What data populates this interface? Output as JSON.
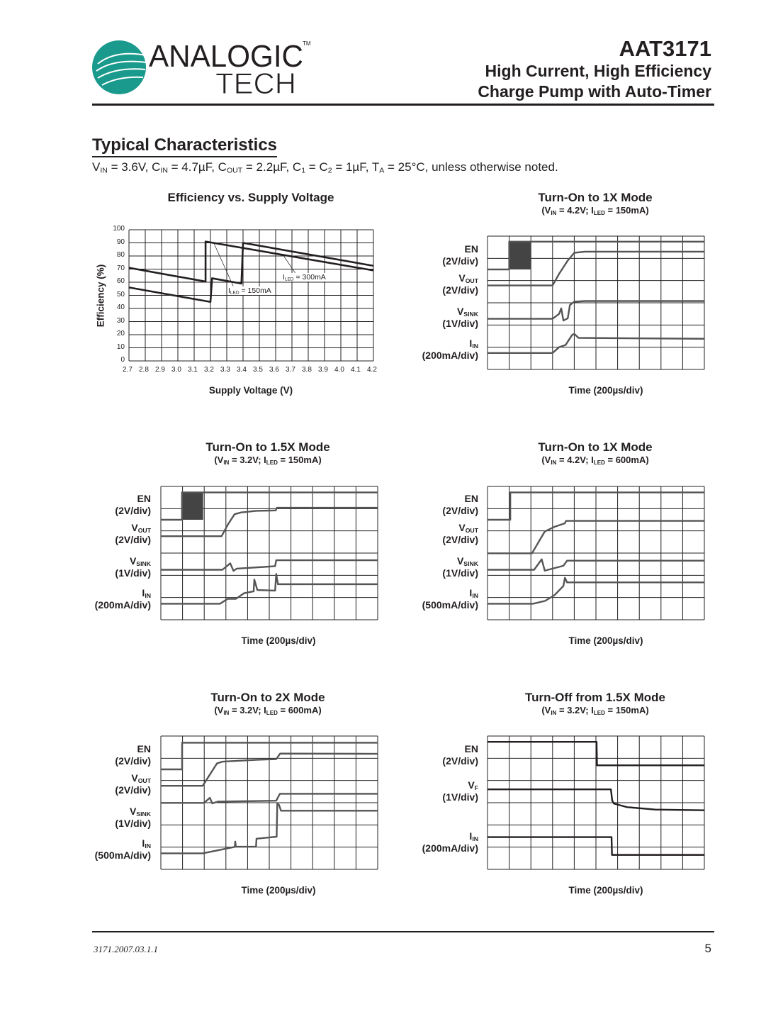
{
  "header": {
    "logo_text": "ANALOGIC TECH",
    "logo_line1": "ANALOGIC",
    "logo_line2": "TECH",
    "logo_tm": "TM",
    "logo_color": "#1a9a8c",
    "part_number": "AAT3171",
    "subtitle_line1": "High Current, High Efficiency",
    "subtitle_line2": "Charge Pump with Auto-Timer"
  },
  "section": {
    "title": "Typical Characteristics",
    "conditions": [
      [
        "V",
        0
      ],
      [
        "IN",
        1
      ],
      [
        " = 3.6V, C",
        0
      ],
      [
        "IN",
        1
      ],
      [
        " = 4.7µF, C",
        0
      ],
      [
        "OUT",
        1
      ],
      [
        " = 2.2µF, C",
        0
      ],
      [
        "1",
        1
      ],
      [
        " = C",
        0
      ],
      [
        "2",
        1
      ],
      [
        " = 1µF, T",
        0
      ],
      [
        "A",
        1
      ],
      [
        " = 25°C, unless otherwise noted.",
        0
      ]
    ]
  },
  "footer": {
    "doc_id": "3171.2007.03.1.1",
    "page_number": "5"
  },
  "chart_data": [
    {
      "type": "line",
      "title": "Efficiency vs. Supply Voltage",
      "xlabel": "Supply Voltage (V)",
      "ylabel": "Efficiency (%)",
      "xlim": [
        2.7,
        4.2
      ],
      "ylim": [
        0,
        100
      ],
      "xticks": [
        "2.7",
        "2.8",
        "2.9",
        "3.0",
        "3.1",
        "3.2",
        "3.3",
        "3.4",
        "3.5",
        "3.6",
        "3.7",
        "3.8",
        "3.9",
        "4.0",
        "4.1",
        "4.2"
      ],
      "yticks": [
        "0",
        "10",
        "20",
        "30",
        "40",
        "50",
        "60",
        "70",
        "80",
        "90",
        "100"
      ],
      "grid": true,
      "annotations": [
        {
          "text": [
            [
              "I",
              0
            ],
            [
              "LED",
              1
            ],
            [
              " = 300mA",
              0
            ]
          ]
        },
        {
          "text": [
            [
              "I",
              0
            ],
            [
              "LED",
              1
            ],
            [
              " = 150mA",
              0
            ]
          ]
        }
      ],
      "series": [
        {
          "points": [
            [
              2.7,
              71
            ],
            [
              3.17,
              60.5
            ],
            [
              3.17,
              91
            ],
            [
              4.2,
              69
            ]
          ]
        },
        {
          "points": [
            [
              2.7,
              56
            ],
            [
              3.2,
              45
            ],
            [
              3.21,
              63
            ],
            [
              3.39,
              59
            ],
            [
              3.4,
              90
            ],
            [
              4.2,
              72.5
            ]
          ]
        }
      ]
    },
    {
      "type": "line",
      "title": "Turn-On to 1X Mode",
      "subtitle": [
        [
          "(V",
          0
        ],
        [
          "IN",
          1
        ],
        [
          " = 4.2V; I",
          0
        ],
        [
          "LED",
          1
        ],
        [
          " = 150mA)",
          0
        ]
      ],
      "xlabel": "Time (200µs/div)",
      "xlim": [
        0,
        2000
      ],
      "ylim": [
        0,
        6
      ],
      "grid": true,
      "channels": [
        {
          "label": [
            [
              "EN",
              0
            ]
          ],
          "scale": "(2V/div)",
          "burst": [
            200,
            400,
            4.5,
            5.75
          ],
          "points": [
            [
              0,
              4.5
            ],
            [
              200,
              4.5
            ],
            [
              200,
              5.75
            ],
            [
              2000,
              5.75
            ]
          ]
        },
        {
          "label": [
            [
              "V",
              0
            ],
            [
              "OUT",
              1
            ]
          ],
          "scale": "(2V/div)",
          "points": [
            [
              0,
              3.78
            ],
            [
              600,
              3.78
            ],
            [
              660,
              4.3
            ],
            [
              700,
              4.6
            ],
            [
              740,
              4.9
            ],
            [
              800,
              5.25
            ],
            [
              900,
              5.3
            ],
            [
              2000,
              5.3
            ]
          ]
        },
        {
          "label": [
            [
              "V",
              0
            ],
            [
              "SINK",
              1
            ]
          ],
          "scale": "(1V/div)",
          "points": [
            [
              0,
              2.28
            ],
            [
              600,
              2.28
            ],
            [
              660,
              2.5
            ],
            [
              680,
              2.75
            ],
            [
              700,
              2.2
            ],
            [
              740,
              2.3
            ],
            [
              760,
              2.9
            ],
            [
              800,
              3.05
            ],
            [
              900,
              3.08
            ],
            [
              2000,
              3.08
            ]
          ]
        },
        {
          "label": [
            [
              "I",
              0
            ],
            [
              "IN",
              1
            ]
          ],
          "scale": "(200mA/div)",
          "points": [
            [
              0,
              0.74
            ],
            [
              600,
              0.74
            ],
            [
              660,
              1.0
            ],
            [
              720,
              1.1
            ],
            [
              780,
              1.55
            ],
            [
              800,
              1.6
            ],
            [
              840,
              1.42
            ],
            [
              2000,
              1.38
            ]
          ]
        }
      ]
    },
    {
      "type": "line",
      "title": "Turn-On to 1.5X Mode",
      "subtitle": [
        [
          "(V",
          0
        ],
        [
          "IN",
          1
        ],
        [
          " = 3.2V; I",
          0
        ],
        [
          "LED",
          1
        ],
        [
          " = 150mA)",
          0
        ]
      ],
      "xlabel": "Time (200µs/div)",
      "xlim": [
        0,
        2000
      ],
      "ylim": [
        0,
        6
      ],
      "grid": true,
      "channels": [
        {
          "label": [
            [
              "EN",
              0
            ]
          ],
          "scale": "(2V/div)",
          "burst": [
            195,
            390,
            4.5,
            5.73
          ],
          "points": [
            [
              0,
              4.5
            ],
            [
              195,
              4.5
            ],
            [
              195,
              5.73
            ],
            [
              2000,
              5.73
            ]
          ]
        },
        {
          "label": [
            [
              "V",
              0
            ],
            [
              "OUT",
              1
            ]
          ],
          "scale": "(2V/div)",
          "points": [
            [
              0,
              3.76
            ],
            [
              560,
              3.76
            ],
            [
              620,
              4.3
            ],
            [
              680,
              4.75
            ],
            [
              740,
              4.83
            ],
            [
              880,
              4.9
            ],
            [
              1060,
              4.92
            ],
            [
              1070,
              5.04
            ],
            [
              2000,
              5.04
            ]
          ]
        },
        {
          "label": [
            [
              "V",
              0
            ],
            [
              "SINK",
              1
            ]
          ],
          "scale": "(1V/div)",
          "points": [
            [
              0,
              2.25
            ],
            [
              568,
              2.25
            ],
            [
              640,
              2.54
            ],
            [
              670,
              2.2
            ],
            [
              700,
              2.3
            ],
            [
              1054,
              2.41
            ],
            [
              1064,
              2.68
            ],
            [
              2000,
              2.68
            ]
          ]
        },
        {
          "label": [
            [
              "I",
              0
            ],
            [
              "IN",
              1
            ]
          ],
          "scale": "(200mA/div)",
          "points": [
            [
              0,
              0.72
            ],
            [
              546,
              0.72
            ],
            [
              616,
              0.94
            ],
            [
              692,
              0.94
            ],
            [
              770,
              1.2
            ],
            [
              856,
              1.28
            ],
            [
              862,
              1.81
            ],
            [
              890,
              1.34
            ],
            [
              1054,
              1.31
            ],
            [
              1064,
              2.06
            ],
            [
              1080,
              1.6
            ],
            [
              2000,
              1.6
            ]
          ]
        }
      ]
    },
    {
      "type": "line",
      "title": "Turn-On to 1X Mode",
      "subtitle": [
        [
          "(V",
          0
        ],
        [
          "IN",
          1
        ],
        [
          " = 4.2V; I",
          0
        ],
        [
          "LED",
          1
        ],
        [
          " = 600mA)",
          0
        ]
      ],
      "xlabel": "Time (200µs/div)",
      "xlim": [
        0,
        2000
      ],
      "ylim": [
        0,
        6
      ],
      "grid": true,
      "channels": [
        {
          "label": [
            [
              "EN",
              0
            ]
          ],
          "scale": "(2V/div)",
          "points": [
            [
              0,
              4.5
            ],
            [
              210,
              4.5
            ],
            [
              210,
              5.73
            ],
            [
              2000,
              5.73
            ]
          ]
        },
        {
          "label": [
            [
              "V",
              0
            ],
            [
              "OUT",
              1
            ]
          ],
          "scale": "(2V/div)",
          "points": [
            [
              0,
              2.99
            ],
            [
              410,
              2.99
            ],
            [
              528,
              3.97
            ],
            [
              616,
              4.18
            ],
            [
              714,
              4.34
            ],
            [
              724,
              4.45
            ],
            [
              2000,
              4.45
            ]
          ]
        },
        {
          "label": [
            [
              "V",
              0
            ],
            [
              "SINK",
              1
            ]
          ],
          "scale": "(1V/div)",
          "points": [
            [
              0,
              2.25
            ],
            [
              430,
              2.25
            ],
            [
              500,
              2.72
            ],
            [
              528,
              2.21
            ],
            [
              700,
              2.43
            ],
            [
              734,
              2.66
            ],
            [
              2000,
              2.66
            ]
          ]
        },
        {
          "label": [
            [
              "I",
              0
            ],
            [
              "IN",
              1
            ]
          ],
          "scale": "(500mA/div)",
          "points": [
            [
              0,
              0.72
            ],
            [
              420,
              0.72
            ],
            [
              532,
              0.85
            ],
            [
              616,
              1.1
            ],
            [
              700,
              1.52
            ],
            [
              714,
              1.89
            ],
            [
              734,
              1.68
            ],
            [
              2000,
              1.68
            ]
          ]
        }
      ]
    },
    {
      "type": "line",
      "title": "Turn-On to 2X Mode",
      "subtitle": [
        [
          "(V",
          0
        ],
        [
          "IN",
          1
        ],
        [
          " = 3.2V; I",
          0
        ],
        [
          "LED",
          1
        ],
        [
          " = 600mA)",
          0
        ]
      ],
      "xlabel": "Time (200µs/div)",
      "xlim": [
        0,
        2000
      ],
      "ylim": [
        0,
        6
      ],
      "grid": true,
      "channels": [
        {
          "label": [
            [
              "EN",
              0
            ]
          ],
          "scale": "(2V/div)",
          "points": [
            [
              0,
              4.5
            ],
            [
              196,
              4.5
            ],
            [
              196,
              5.7
            ],
            [
              2000,
              5.7
            ]
          ]
        },
        {
          "label": [
            [
              "V",
              0
            ],
            [
              "OUT",
              1
            ]
          ],
          "scale": "(2V/div)",
          "points": [
            [
              0,
              3.76
            ],
            [
              386,
              3.76
            ],
            [
              518,
              4.77
            ],
            [
              572,
              4.85
            ],
            [
              878,
              4.93
            ],
            [
              1064,
              4.96
            ],
            [
              1100,
              5.21
            ],
            [
              2000,
              5.2
            ]
          ]
        },
        {
          "label": [
            [
              "V",
              0
            ],
            [
              "SINK",
              1
            ]
          ],
          "scale": "(1V/div)",
          "points": [
            [
              0,
              2.99
            ],
            [
              398,
              2.99
            ],
            [
              452,
              3.22
            ],
            [
              474,
              2.97
            ],
            [
              528,
              3.05
            ],
            [
              1064,
              3.09
            ],
            [
              1098,
              3.4
            ],
            [
              2000,
              3.4
            ]
          ]
        },
        {
          "label": [
            [
              "I",
              0
            ],
            [
              "IN",
              1
            ]
          ],
          "scale": "(500mA/div)",
          "points": [
            [
              0,
              0.72
            ],
            [
              386,
              0.72
            ],
            [
              528,
              0.86
            ],
            [
              682,
              1.01
            ],
            [
              686,
              1.25
            ],
            [
              692,
              1.02
            ],
            [
              878,
              1.02
            ],
            [
              882,
              1.38
            ],
            [
              1068,
              1.47
            ],
            [
              1074,
              2.96
            ],
            [
              1090,
              2.9
            ],
            [
              1108,
              2.64
            ],
            [
              2000,
              2.64
            ]
          ]
        }
      ]
    },
    {
      "type": "line",
      "title": "Turn-Off from 1.5X Mode",
      "subtitle": [
        [
          "(V",
          0
        ],
        [
          "IN",
          1
        ],
        [
          " = 3.2V; I",
          0
        ],
        [
          "LED",
          1
        ],
        [
          " = 150mA)",
          0
        ]
      ],
      "xlabel": "Time (200µs/div)",
      "xlim": [
        0,
        2000
      ],
      "ylim": [
        0,
        6
      ],
      "grid": true,
      "channels": [
        {
          "label": [
            [
              "EN",
              0
            ]
          ],
          "scale": "(2V/div)",
          "points": [
            [
              0,
              5.74
            ],
            [
              1006,
              5.74
            ],
            [
              1010,
              4.68
            ],
            [
              2000,
              4.68
            ]
          ]
        },
        {
          "label": [
            [
              "V",
              0
            ],
            [
              "F",
              1
            ]
          ],
          "scale": "(1V/div)",
          "points": [
            [
              0,
              3.6
            ],
            [
              1138,
              3.6
            ],
            [
              1150,
              3.1
            ],
            [
              1166,
              2.96
            ],
            [
              1286,
              2.8
            ],
            [
              1546,
              2.69
            ],
            [
              2000,
              2.66
            ]
          ]
        },
        {
          "label": [
            [
              "I",
              0
            ],
            [
              "IN",
              1
            ]
          ],
          "scale": "(200mA/div)",
          "points": [
            [
              0,
              1.45
            ],
            [
              1144,
              1.45
            ],
            [
              1148,
              0.65
            ],
            [
              2000,
              0.65
            ]
          ]
        }
      ]
    }
  ]
}
